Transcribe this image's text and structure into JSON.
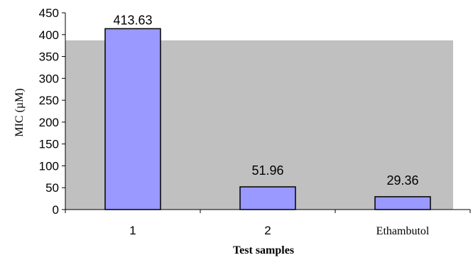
{
  "chart_data": {
    "type": "bar",
    "categories": [
      "1",
      "2",
      "Ethambutol"
    ],
    "values": [
      413.63,
      51.96,
      29.36
    ],
    "data_labels": [
      "413.63",
      "51.96",
      "29.36"
    ],
    "title": "",
    "xlabel": "Test samples",
    "ylabel": "MIC (µM)",
    "ylim": [
      0,
      450
    ],
    "yticks": [
      0,
      50,
      100,
      150,
      200,
      250,
      300,
      350,
      400,
      450
    ],
    "grid": false,
    "plot_area_fill_top_value": 387,
    "colors": {
      "bar_fill": "#9999ff",
      "bar_stroke": "#000000",
      "plot_area": "#c0c0c0",
      "axis": "#000000"
    }
  }
}
